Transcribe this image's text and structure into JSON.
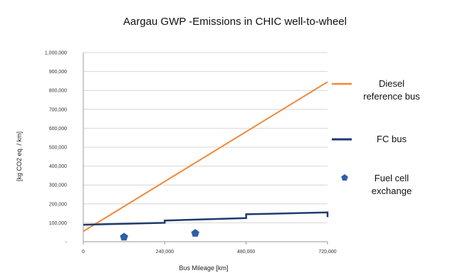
{
  "chart_data": {
    "type": "line",
    "title": "Aargau GWP -Emissions in CHIC well-to-wheel",
    "xlabel": "Bus Mileage [km]",
    "ylabel": "[kg CO2 eq. / km]",
    "xlim": [
      0,
      720000
    ],
    "ylim": [
      0,
      1000000
    ],
    "x_ticks": [
      {
        "value": 0,
        "label": "0"
      },
      {
        "value": 240000,
        "label": "240,000"
      },
      {
        "value": 480000,
        "label": "480,000"
      },
      {
        "value": 720000,
        "label": "720,000"
      }
    ],
    "y_ticks": [
      {
        "value": 0,
        "label": "-"
      },
      {
        "value": 100000,
        "label": "100,000"
      },
      {
        "value": 200000,
        "label": "200,000"
      },
      {
        "value": 300000,
        "label": "300,000"
      },
      {
        "value": 400000,
        "label": "400,000"
      },
      {
        "value": 500000,
        "label": "500,000"
      },
      {
        "value": 600000,
        "label": "600,000"
      },
      {
        "value": 700000,
        "label": "700,000"
      },
      {
        "value": 800000,
        "label": "800,000"
      },
      {
        "value": 900000,
        "label": "900,000"
      },
      {
        "value": 1000000,
        "label": "1,000,000"
      }
    ],
    "grid": true,
    "legend_position": "right",
    "series": [
      {
        "name": "Diesel reference bus",
        "kind": "line",
        "color": "#f0883a",
        "points": [
          [
            0,
            55000
          ],
          [
            720000,
            845000
          ]
        ]
      },
      {
        "name": "FC bus",
        "kind": "step-line",
        "color": "#1f3b6e",
        "points": [
          [
            0,
            90000
          ],
          [
            240000,
            100000
          ],
          [
            240000,
            112000
          ],
          [
            480000,
            125000
          ],
          [
            480000,
            145000
          ],
          [
            720000,
            155000
          ],
          [
            720000,
            130000
          ]
        ]
      },
      {
        "name": "Fuel cell exchange",
        "kind": "marker",
        "color": "#2e5fa8",
        "points": [
          [
            120000,
            25000
          ],
          [
            330000,
            45000
          ]
        ]
      }
    ],
    "legend": [
      {
        "lines": [
          "Diesel",
          "reference bus"
        ],
        "color": "#f0883a",
        "symbol": "line"
      },
      {
        "lines": [
          "FC bus"
        ],
        "color": "#1f3b6e",
        "symbol": "line"
      },
      {
        "lines": [
          "Fuel cell",
          "exchange"
        ],
        "color": "#2e5fa8",
        "symbol": "pentagon"
      }
    ]
  }
}
